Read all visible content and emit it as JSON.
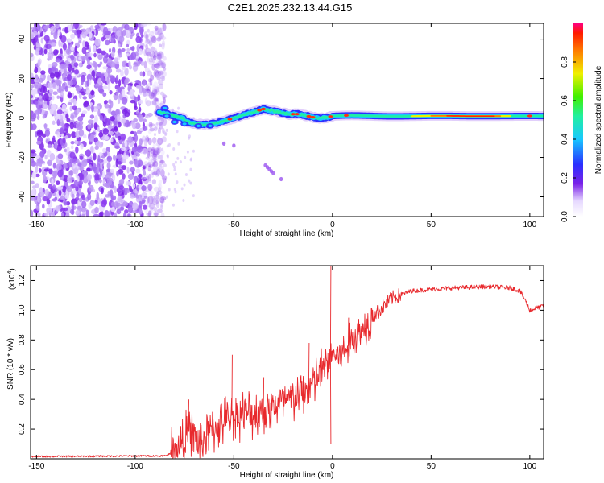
{
  "title": "C2E1.2025.232.13.44.G15",
  "chart_data": [
    {
      "type": "heatmap",
      "xlabel": "Height of straight line (km)",
      "ylabel": "Frequency (Hz)",
      "xlim": [
        -153,
        107
      ],
      "ylim": [
        -50,
        48
      ],
      "x_ticks": [
        -150,
        -100,
        -50,
        0,
        50,
        100
      ],
      "y_ticks": [
        -40,
        -20,
        0,
        20,
        40
      ],
      "colorbar": {
        "label": "Normalized spectral amplitude",
        "range": [
          0,
          1
        ],
        "ticks": [
          0.0,
          0.2,
          0.4,
          0.6,
          0.8
        ]
      },
      "colors": {
        "noise": "#7a22e8",
        "signal_low": "#1a2cff",
        "signal_mid": "#15e0ff",
        "signal_high": "#ff3010"
      }
    },
    {
      "type": "line",
      "xlabel": "Height of straight line (km)",
      "ylabel": "SNR (10 * v/v)",
      "scale_label": "(x10",
      "scale_exp": "4",
      "scale_close": ")",
      "xlim": [
        -153,
        107
      ],
      "ylim": [
        0,
        1.3
      ],
      "x_ticks": [
        -150,
        -100,
        -50,
        0,
        50,
        100
      ],
      "y_ticks": [
        0.2,
        0.4,
        0.6,
        0.8,
        1.0,
        1.2
      ],
      "color": "#e8292d",
      "series_profile": {
        "x": [
          -153,
          -85,
          -80,
          -72,
          -68,
          -60,
          -50,
          -40,
          -30,
          -20,
          -10,
          -5,
          0,
          5,
          10,
          20,
          30,
          40,
          60,
          80,
          90,
          95,
          98,
          100,
          107
        ],
        "y": [
          0.015,
          0.02,
          0.05,
          0.2,
          0.1,
          0.2,
          0.3,
          0.3,
          0.35,
          0.4,
          0.5,
          0.6,
          0.7,
          0.7,
          0.8,
          0.95,
          1.08,
          1.13,
          1.15,
          1.16,
          1.15,
          1.13,
          1.06,
          1.0,
          1.03
        ]
      },
      "spikes": [
        {
          "x": -73,
          "y": 0.4
        },
        {
          "x": -51,
          "y": 0.7
        },
        {
          "x": -35,
          "y": 0.55
        },
        {
          "x": -12,
          "y": 0.78
        },
        {
          "x": -1,
          "y": 1.3
        },
        {
          "x": -1,
          "y": 0.1
        },
        {
          "x": 8,
          "y": 0.95
        }
      ]
    }
  ]
}
